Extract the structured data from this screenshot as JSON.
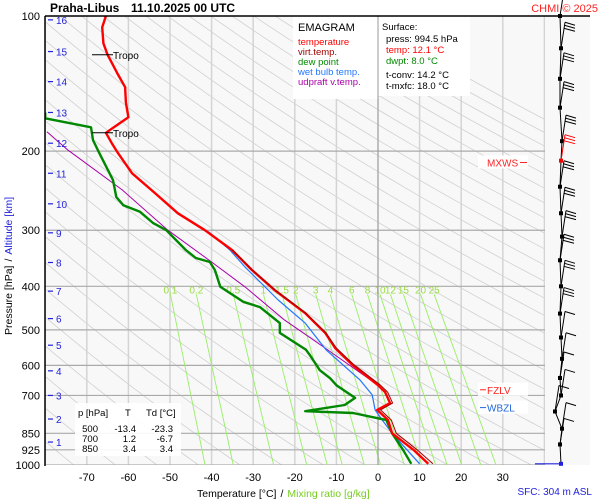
{
  "header": {
    "station": "Praha-Libus",
    "datetime": "11.10.2025 00 UTC",
    "copyright": "CHMI © 2025"
  },
  "legend": {
    "title": "EMAGRAM",
    "items": [
      {
        "label": "temperature",
        "color": "#ff0000"
      },
      {
        "label": "virt.temp.",
        "color": "#a00000"
      },
      {
        "label": "dew point",
        "color": "#008800"
      },
      {
        "label": "wet bulb temp.",
        "color": "#2277ff"
      },
      {
        "label": "udpraft v.temp.",
        "color": "#aa00aa"
      }
    ]
  },
  "surface": {
    "title": "Surface:",
    "press": "press: 994.5 hPa",
    "temp": "temp: 12.1 °C",
    "dwpt": "dwpt: 8.0 °C",
    "tconv": "t-conv: 14.2 °C",
    "tmxfc": "t-mxfc: 18.0 °C"
  },
  "table": {
    "headers": [
      "p [hPa]",
      "T",
      "Td [°C]"
    ],
    "rows": [
      [
        "500",
        "-13.4",
        "-23.3"
      ],
      [
        "700",
        "1.2",
        "-6.7"
      ],
      [
        "850",
        "3.4",
        "3.4"
      ]
    ]
  },
  "markers": {
    "tropo": "Tropo",
    "mxws": "MXWS",
    "fzlv": "FZLV",
    "wbzl": "WBZL",
    "sfc": "SFC: 304 m ASL"
  },
  "axes": {
    "ylabel_pressure": "Pressure [hPa]",
    "ylabel_sep": "/",
    "ylabel_altitude": "Altitude [km]",
    "xlabel_temp": "Temperature [°C]",
    "xlabel_sep": "/",
    "xlabel_mixing": "Mixing ratio [g/kg]"
  },
  "chart_data": {
    "type": "line",
    "title": "EMAGRAM",
    "y_scale": "log",
    "ylim": [
      1000,
      100
    ],
    "xlim": [
      -80,
      40
    ],
    "grid": true,
    "pressure_ticks": [
      "100",
      "200",
      "300",
      "400",
      "500",
      "600",
      "700",
      "850",
      "925",
      "1000"
    ],
    "temperature_ticks": [
      "-70",
      "-60",
      "-50",
      "-40",
      "-30",
      "-20",
      "-10",
      "0",
      "10",
      "20",
      "30"
    ],
    "altitude_ticks_km": [
      "1",
      "2",
      "3",
      "4",
      "5",
      "6",
      "7",
      "8",
      "9",
      "10",
      "11",
      "12",
      "13",
      "14",
      "15",
      "16"
    ],
    "altitude_tick_pressures": [
      889,
      790,
      700,
      617,
      541,
      472,
      410,
      354,
      304,
      262,
      224,
      192,
      164,
      140,
      120,
      102
    ],
    "mixing_ratio_labels": [
      "0.1",
      "0.2",
      "0.5",
      "1",
      "1.5",
      "2",
      "3",
      "4",
      "6",
      "8",
      "10",
      "12",
      "15",
      "20",
      "25"
    ],
    "colors": {
      "temperature": "#ff0000",
      "virt_temp": "#a00000",
      "dew_point": "#008800",
      "wet_bulb": "#2277ff",
      "updraft": "#aa00aa",
      "mixing": "#99ee66",
      "adiabat": "#d0d0d0",
      "isoline": "#aaaaaa"
    },
    "series": [
      {
        "name": "temperature",
        "points": [
          [
            994,
            12.1
          ],
          [
            925,
            8.5
          ],
          [
            850,
            3.4
          ],
          [
            794,
            2.4
          ],
          [
            754,
            -0.2
          ],
          [
            728,
            2.9
          ],
          [
            688,
            1.7
          ],
          [
            664,
            0
          ],
          [
            598,
            -6.2
          ],
          [
            549,
            -10.3
          ],
          [
            508,
            -12.7
          ],
          [
            459,
            -17.5
          ],
          [
            408,
            -24.8
          ],
          [
            368,
            -30.3
          ],
          [
            332,
            -35.1
          ],
          [
            300,
            -41.6
          ],
          [
            275,
            -48.1
          ],
          [
            248,
            -53.6
          ],
          [
            224,
            -59.1
          ],
          [
            202,
            -62.5
          ],
          [
            192,
            -64
          ],
          [
            182,
            -65.4
          ],
          [
            168,
            -60
          ],
          [
            156,
            -60.6
          ],
          [
            144,
            -60.8
          ],
          [
            134,
            -62.7
          ],
          [
            122,
            -65
          ],
          [
            115,
            -66
          ],
          [
            106,
            -66.3
          ],
          [
            100,
            -65.4
          ]
        ]
      },
      {
        "name": "virt.temp.",
        "points": [
          [
            994,
            13.2
          ],
          [
            925,
            9.4
          ],
          [
            850,
            4.4
          ],
          [
            794,
            3.2
          ],
          [
            754,
            0.6
          ],
          [
            728,
            3.5
          ],
          [
            688,
            2.3
          ],
          [
            664,
            0.6
          ],
          [
            598,
            -5.8
          ],
          [
            549,
            -10
          ],
          [
            508,
            -12.5
          ],
          [
            459,
            -17.3
          ],
          [
            408,
            -24.7
          ],
          [
            368,
            -30.2
          ],
          [
            332,
            -35
          ]
        ]
      },
      {
        "name": "dew point",
        "points": [
          [
            994,
            8.0
          ],
          [
            925,
            6
          ],
          [
            850,
            3.4
          ],
          [
            794,
            2
          ],
          [
            766,
            -6
          ],
          [
            759,
            -17.5
          ],
          [
            735,
            -8
          ],
          [
            709,
            -5.5
          ],
          [
            664,
            -10
          ],
          [
            641,
            -11.5
          ],
          [
            615,
            -14
          ],
          [
            569,
            -16.4
          ],
          [
            554,
            -17.3
          ],
          [
            508,
            -23.6
          ],
          [
            483,
            -23.6
          ],
          [
            445,
            -28.4
          ],
          [
            433,
            -32.4
          ],
          [
            401,
            -37.9
          ],
          [
            368,
            -39.2
          ],
          [
            353,
            -40.4
          ],
          [
            346,
            -43.8
          ],
          [
            332,
            -46.2
          ],
          [
            300,
            -50.9
          ],
          [
            289,
            -54.1
          ],
          [
            273,
            -57.2
          ],
          [
            264,
            -61.2
          ],
          [
            253,
            -62.9
          ],
          [
            232,
            -63.7
          ],
          [
            202,
            -67
          ],
          [
            189,
            -68.5
          ],
          [
            177,
            -69
          ],
          [
            169,
            -80
          ],
          [
            164,
            -80
          ]
        ]
      },
      {
        "name": "wet bulb temp.",
        "points": [
          [
            994,
            10
          ],
          [
            850,
            3.4
          ],
          [
            794,
            1
          ],
          [
            754,
            -0.7
          ],
          [
            698,
            -1.4
          ],
          [
            647,
            -4.3
          ],
          [
            554,
            -12.5
          ],
          [
            483,
            -17.5
          ],
          [
            429,
            -24
          ],
          [
            362,
            -32
          ],
          [
            332,
            -35.6
          ],
          [
            304,
            -40.4
          ],
          [
            280,
            -46.6
          ]
        ]
      },
      {
        "name": "udpraft v.temp.",
        "points": [
          [
            664,
            0
          ],
          [
            549,
            -12.7
          ],
          [
            476,
            -22.4
          ],
          [
            401,
            -32
          ],
          [
            353,
            -40
          ],
          [
            300,
            -50.5
          ],
          [
            244,
            -61.5
          ],
          [
            199,
            -74.5
          ],
          [
            181,
            -79.6
          ]
        ]
      }
    ],
    "tropopause_pressures": [
      122,
      182
    ],
    "mxws_pressure": 212,
    "fzlv_pressure": 680,
    "wbzl_pressure": 745,
    "wind_barb_pressures": [
      100,
      118,
      138,
      160,
      190,
      210,
      240,
      275,
      310,
      350,
      400,
      460,
      520,
      580,
      640,
      700,
      760,
      830,
      900,
      994
    ]
  }
}
